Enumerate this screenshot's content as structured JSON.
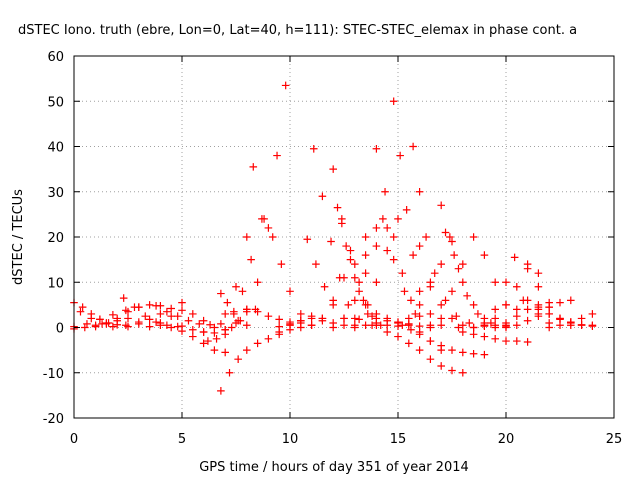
{
  "chart_data": {
    "type": "scatter",
    "title": "dSTEC Iono. truth (ebre, Lon=0, Lat=40, h=111): STEC-STEC_elemax in phase cont. a",
    "xlabel": "GPS time / hours of day 351 of year 2014",
    "ylabel": "dSTEC  / TECUs",
    "xlim": [
      0,
      25
    ],
    "ylim": [
      -20,
      60
    ],
    "x_ticks": [
      0,
      5,
      10,
      15,
      20,
      25
    ],
    "y_ticks": [
      -20,
      -10,
      0,
      10,
      20,
      30,
      40,
      50,
      60
    ],
    "x_tick_labels": [
      "0",
      "5",
      "10",
      "15",
      "20",
      "25"
    ],
    "y_tick_labels": [
      "-20",
      "-10",
      "0",
      "10",
      "20",
      "30",
      "40",
      "50",
      "60"
    ],
    "grid": true,
    "marker": "plus",
    "color": "#ff0000",
    "series": [
      {
        "x": [
          0.0,
          0.4,
          0.8,
          1.2,
          1.6,
          2.0
        ],
        "y": [
          5.5,
          4.5,
          3.0,
          1.8,
          1.0,
          0.6
        ]
      },
      {
        "x": [
          0.0,
          0.6,
          1.2,
          1.8,
          2.4,
          3.0
        ],
        "y": [
          0.2,
          0.8,
          1.8,
          2.8,
          3.8,
          4.5
        ]
      },
      {
        "x": [
          0.0,
          0.5,
          1.0,
          1.5,
          2.0,
          2.5
        ],
        "y": [
          -0.3,
          0.0,
          0.5,
          1.0,
          1.5,
          2.0
        ]
      },
      {
        "x": [
          0.3,
          0.8,
          1.3,
          1.8,
          2.4,
          3.0
        ],
        "y": [
          3.5,
          2.0,
          0.8,
          0.2,
          0.5,
          1.2
        ]
      },
      {
        "x": [
          1.0,
          1.5,
          2.0,
          2.5,
          3.0,
          3.5,
          4.0
        ],
        "y": [
          0.2,
          0.8,
          2.0,
          3.5,
          4.5,
          5.0,
          4.8
        ]
      },
      {
        "x": [
          2.3,
          2.8,
          3.3,
          3.8,
          4.3,
          4.8
        ],
        "y": [
          6.5,
          4.5,
          2.5,
          1.2,
          0.5,
          0.2
        ]
      },
      {
        "x": [
          2.5,
          3.0,
          3.5,
          4.0,
          4.5,
          5.0
        ],
        "y": [
          0.2,
          0.8,
          1.8,
          3.0,
          4.2,
          5.5
        ]
      },
      {
        "x": [
          3.5,
          4.0,
          4.5,
          5.0,
          5.5,
          6.0
        ],
        "y": [
          0.2,
          1.0,
          2.5,
          3.8,
          3.0,
          1.5
        ]
      },
      {
        "x": [
          3.8,
          4.3,
          4.8,
          5.3,
          5.8,
          6.3,
          6.8
        ],
        "y": [
          4.8,
          3.5,
          2.5,
          1.5,
          0.8,
          0.6,
          0.8
        ]
      },
      {
        "x": [
          4.0,
          4.5,
          5.0,
          5.5,
          6.0,
          6.5,
          7.0
        ],
        "y": [
          0.5,
          0.0,
          -0.8,
          -2.0,
          -3.5,
          -5.0,
          -5.5
        ]
      },
      {
        "x": [
          5.0,
          5.5,
          6.0,
          6.5,
          7.0,
          7.5,
          8.0,
          8.3
        ],
        "y": [
          0.3,
          -0.5,
          -1.0,
          0.0,
          3.0,
          9.0,
          20.0,
          35.5
        ]
      },
      {
        "x": [
          6.2,
          6.6,
          7.0,
          7.4,
          7.8,
          8.2,
          8.7
        ],
        "y": [
          -3.0,
          -2.5,
          -0.5,
          3.0,
          8.0,
          15.0,
          24.0
        ]
      },
      {
        "x": [
          6.0,
          6.5,
          7.0,
          7.5,
          8.0,
          8.5,
          9.0,
          9.4,
          9.8
        ],
        "y": [
          -1.0,
          -1.2,
          -0.5,
          1.0,
          4.0,
          10.0,
          22.0,
          38.0,
          53.5
        ]
      },
      {
        "x": [
          6.8,
          7.2,
          7.6,
          8.0,
          8.5,
          9.0,
          9.5,
          10.0
        ],
        "y": [
          -14.0,
          -10.0,
          -7.0,
          -5.0,
          -3.5,
          -2.5,
          -1.5,
          -0.5
        ]
      },
      {
        "x": [
          6.8,
          7.1,
          7.4,
          7.7,
          8.0
        ],
        "y": [
          7.5,
          5.5,
          3.5,
          1.5,
          0.5
        ]
      },
      {
        "x": [
          7.0,
          7.3,
          7.6,
          8.0,
          8.4
        ],
        "y": [
          -1.5,
          0.0,
          1.5,
          3.5,
          4.0
        ]
      },
      {
        "x": [
          8.0,
          8.5,
          9.0,
          9.5,
          10.0,
          10.5
        ],
        "y": [
          4.0,
          3.5,
          2.5,
          1.8,
          1.2,
          1.0
        ]
      },
      {
        "x": [
          8.8,
          9.2,
          9.6,
          10.0,
          10.5,
          11.0
        ],
        "y": [
          24.0,
          20.0,
          14.0,
          8.0,
          3.0,
          0.5
        ]
      },
      {
        "x": [
          9.5,
          10.0,
          10.5,
          11.0,
          11.5,
          12.0
        ],
        "y": [
          0.2,
          0.8,
          1.5,
          2.5,
          2.0,
          1.0
        ]
      },
      {
        "x": [
          9.5,
          10.0,
          10.5,
          11.0,
          11.5
        ],
        "y": [
          -1.0,
          0.5,
          1.5,
          2.0,
          1.5
        ]
      },
      {
        "x": [
          10.8,
          11.2,
          11.6,
          12.0,
          12.5,
          13.0
        ],
        "y": [
          19.5,
          14.0,
          9.0,
          5.0,
          2.0,
          0.5
        ]
      },
      {
        "x": [
          11.1,
          11.5,
          11.9,
          12.3,
          12.7,
          13.2,
          13.8
        ],
        "y": [
          39.5,
          29.0,
          19.0,
          11.0,
          5.0,
          1.8,
          0.5
        ]
      },
      {
        "x": [
          10.5,
          11.0,
          11.5,
          12.0,
          12.5,
          13.0,
          13.5
        ],
        "y": [
          0.0,
          0.5,
          2.0,
          6.0,
          11.0,
          14.0,
          16.0
        ]
      },
      {
        "x": [
          12.0,
          12.4,
          12.8,
          13.2,
          13.6,
          14.0
        ],
        "y": [
          35.0,
          24.0,
          15.0,
          8.0,
          3.0,
          0.5
        ]
      },
      {
        "x": [
          12.2,
          12.6,
          13.0,
          13.4,
          13.8,
          14.2
        ],
        "y": [
          26.5,
          18.0,
          11.0,
          6.0,
          2.5,
          0.5
        ]
      },
      {
        "x": [
          12.4,
          12.8,
          13.2,
          13.6,
          14.0,
          14.5
        ],
        "y": [
          23.0,
          17.0,
          10.0,
          5.0,
          2.0,
          0.5
        ]
      },
      {
        "x": [
          12.0,
          12.5,
          13.0,
          13.5,
          14.0,
          14.5
        ],
        "y": [
          0.0,
          2.0,
          6.0,
          12.0,
          18.0,
          22.0
        ]
      },
      {
        "x": [
          12.5,
          13.0,
          13.5,
          14.0,
          14.5,
          15.0
        ],
        "y": [
          0.5,
          2.0,
          5.0,
          10.0,
          17.0,
          24.0
        ]
      },
      {
        "x": [
          13.5,
          14.0,
          14.3,
          14.8,
          15.3,
          15.8
        ],
        "y": [
          20.0,
          22.0,
          24.0,
          15.0,
          8.0,
          3.0
        ]
      },
      {
        "x": [
          14.0,
          14.4,
          14.8,
          15.2,
          15.6,
          16.0,
          16.5
        ],
        "y": [
          39.5,
          30.0,
          20.0,
          12.0,
          6.0,
          2.5,
          0.5
        ]
      },
      {
        "x": [
          13.0,
          13.5,
          14.0,
          14.5,
          15.0,
          15.5,
          16.0
        ],
        "y": [
          0.0,
          0.5,
          1.0,
          1.5,
          1.2,
          0.8,
          0.3
        ]
      },
      {
        "x": [
          14.0,
          14.5,
          15.0,
          15.5,
          16.0,
          16.5,
          17.0
        ],
        "y": [
          3.0,
          2.0,
          1.0,
          0.5,
          -1.0,
          -3.0,
          -5.0
        ]
      },
      {
        "x": [
          14.8,
          15.1,
          15.4,
          15.7,
          16.0,
          16.5,
          17.0,
          17.8
        ],
        "y": [
          50.0,
          38.0,
          26.0,
          16.0,
          8.0,
          3.0,
          0.5,
          0.0
        ]
      },
      {
        "x": [
          14.5,
          15.0,
          15.5,
          16.0,
          16.5,
          17.0,
          17.5,
          18.0
        ],
        "y": [
          -1.0,
          -2.0,
          -3.5,
          -5.0,
          -7.0,
          -8.5,
          -9.5,
          -10.0
        ]
      },
      {
        "x": [
          15.2,
          15.6,
          16.0,
          16.5,
          17.0,
          17.5,
          18.0,
          18.5,
          19.0
        ],
        "y": [
          0.5,
          -0.5,
          -1.5,
          -3.0,
          -4.0,
          -5.0,
          -5.5,
          -5.8,
          -6.0
        ]
      },
      {
        "x": [
          15.7,
          16.0,
          16.3,
          16.7,
          17.2,
          17.7,
          18.3,
          19.0
        ],
        "y": [
          40.0,
          30.0,
          20.0,
          12.0,
          6.0,
          2.5,
          1.0,
          0.3
        ]
      },
      {
        "x": [
          15.0,
          15.5,
          16.0,
          16.5,
          17.0,
          17.5
        ],
        "y": [
          0.3,
          2.0,
          5.0,
          9.0,
          14.0,
          19.0
        ]
      },
      {
        "x": [
          16.0,
          16.5,
          17.0,
          17.5,
          18.0,
          18.5,
          19.0
        ],
        "y": [
          18.0,
          10.0,
          5.0,
          2.0,
          0.5,
          0.0,
          0.5
        ]
      },
      {
        "x": [
          16.5,
          17.0,
          17.5,
          18.0,
          18.5,
          19.0,
          19.5,
          20.0
        ],
        "y": [
          0.0,
          2.0,
          8.0,
          14.0,
          20.0,
          16.0,
          10.0,
          5.0
        ]
      },
      {
        "x": [
          17.0,
          17.4,
          17.8,
          18.2,
          18.7,
          19.3,
          20.0
        ],
        "y": [
          27.0,
          20.0,
          13.0,
          7.0,
          3.0,
          1.0,
          0.3
        ]
      },
      {
        "x": [
          17.2,
          17.6,
          18.0,
          18.5,
          19.0,
          19.5,
          20.0
        ],
        "y": [
          21.0,
          16.0,
          10.0,
          5.0,
          2.0,
          0.5,
          0.0
        ]
      },
      {
        "x": [
          18.0,
          18.5,
          19.0,
          19.5,
          20.0,
          20.5,
          21.0
        ],
        "y": [
          -1.0,
          -1.5,
          -2.0,
          -2.5,
          -3.0,
          -3.0,
          -3.2
        ]
      },
      {
        "x": [
          18.5,
          19.0,
          19.5,
          20.0,
          20.5,
          21.0,
          21.5
        ],
        "y": [
          0.0,
          0.5,
          2.0,
          5.0,
          9.0,
          14.0,
          12.0
        ]
      },
      {
        "x": [
          19.0,
          19.5,
          20.0,
          20.4,
          20.8,
          21.5,
          22.0
        ],
        "y": [
          1.0,
          4.0,
          10.0,
          15.5,
          6.0,
          2.5,
          1.0
        ]
      },
      {
        "x": [
          20.0,
          20.5,
          21.0,
          21.5,
          22.0,
          22.5,
          23.0
        ],
        "y": [
          0.5,
          4.0,
          13.0,
          9.0,
          4.5,
          2.0,
          0.5
        ]
      },
      {
        "x": [
          19.5,
          20.0,
          20.5,
          21.0,
          21.5,
          22.0
        ],
        "y": [
          0.0,
          1.0,
          2.5,
          4.0,
          5.0,
          5.5
        ]
      },
      {
        "x": [
          20.5,
          21.0,
          21.5,
          22.0,
          22.5,
          23.0
        ],
        "y": [
          0.5,
          1.5,
          3.0,
          4.5,
          5.5,
          6.0
        ]
      },
      {
        "x": [
          21.0,
          21.5,
          22.0,
          22.5,
          23.0,
          23.5,
          24.0
        ],
        "y": [
          6.0,
          4.5,
          3.0,
          1.8,
          1.0,
          0.5,
          0.5
        ]
      },
      {
        "x": [
          22.0,
          22.5,
          23.0,
          23.5,
          24.0
        ],
        "y": [
          0.0,
          0.5,
          1.2,
          2.0,
          3.0
        ]
      },
      {
        "x": [
          21.5,
          22.0,
          22.5,
          23.0,
          23.5,
          24.0
        ],
        "y": [
          4.0,
          3.0,
          2.0,
          1.2,
          0.6,
          0.3
        ]
      }
    ]
  }
}
